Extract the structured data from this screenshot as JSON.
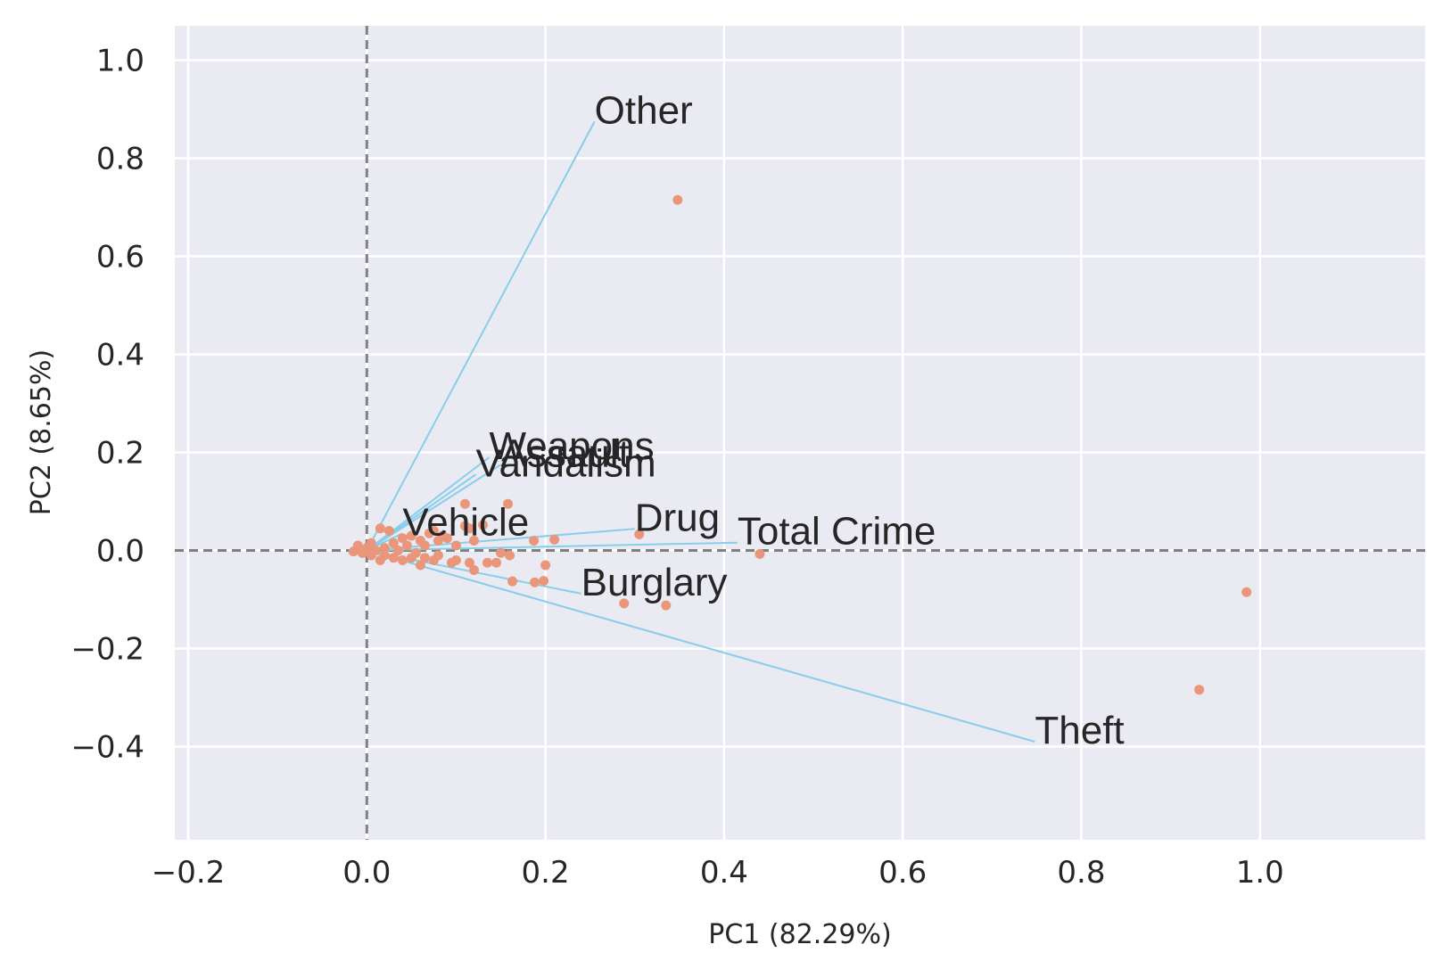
{
  "chart_data": {
    "type": "scatter",
    "subtype": "pca-biplot",
    "title": "",
    "xlabel": "PC1 (82.29%)",
    "ylabel": "PC2 (8.65%)",
    "xlim": [
      -0.215,
      1.185
    ],
    "ylim": [
      -0.59,
      1.07
    ],
    "xticks": [
      -0.2,
      0.0,
      0.2,
      0.4,
      0.6,
      0.8,
      1.0
    ],
    "xtick_labels": [
      "−0.2",
      "0.0",
      "0.2",
      "0.4",
      "0.6",
      "0.8",
      "1.0"
    ],
    "yticks": [
      1.0,
      0.8,
      0.6,
      0.4,
      0.2,
      0.0,
      -0.2,
      -0.4
    ],
    "ytick_labels": [
      "1.0",
      "0.8",
      "0.6",
      "0.4",
      "0.2",
      "0.0",
      "−0.2",
      "−0.4"
    ],
    "grid": true,
    "reference_lines": {
      "x": 0.0,
      "y": 0.0,
      "style": "dashed"
    },
    "colors": {
      "background": "#eaeaf2",
      "grid": "#ffffff",
      "points": "#e9967a",
      "vectors": "#87ceeb",
      "reference": "#808080",
      "text": "#262626"
    },
    "loadings": [
      {
        "name": "Other",
        "x": 0.255,
        "y": 0.875
      },
      {
        "name": "Weapons",
        "x": 0.137,
        "y": 0.19
      },
      {
        "name": "Assault",
        "x": 0.15,
        "y": 0.175
      },
      {
        "name": "Vandalism",
        "x": 0.122,
        "y": 0.155
      },
      {
        "name": "Vehicle",
        "x": 0.04,
        "y": 0.035
      },
      {
        "name": "Drug",
        "x": 0.3,
        "y": 0.044
      },
      {
        "name": "Total Crime",
        "x": 0.415,
        "y": 0.016
      },
      {
        "name": "Burglary",
        "x": 0.24,
        "y": -0.088
      },
      {
        "name": "Theft",
        "x": 0.748,
        "y": -0.39
      }
    ],
    "scores": [
      [
        0.348,
        0.715
      ],
      [
        0.985,
        -0.085
      ],
      [
        0.932,
        -0.284
      ],
      [
        0.44,
        -0.007
      ],
      [
        0.335,
        -0.112
      ],
      [
        0.288,
        -0.108
      ],
      [
        0.305,
        0.033
      ],
      [
        0.21,
        0.022
      ],
      [
        0.2,
        -0.03
      ],
      [
        0.198,
        -0.062
      ],
      [
        0.188,
        -0.065
      ],
      [
        0.187,
        0.02
      ],
      [
        0.163,
        -0.063
      ],
      [
        0.158,
        0.095
      ],
      [
        0.16,
        -0.01
      ],
      [
        0.15,
        -0.005
      ],
      [
        0.145,
        -0.025
      ],
      [
        0.135,
        -0.025
      ],
      [
        0.13,
        0.052
      ],
      [
        0.115,
        0.045
      ],
      [
        0.12,
        -0.04
      ],
      [
        0.12,
        0.02
      ],
      [
        0.11,
        0.095
      ],
      [
        0.11,
        0.05
      ],
      [
        0.115,
        -0.025
      ],
      [
        0.1,
        -0.02
      ],
      [
        0.1,
        0.01
      ],
      [
        0.095,
        -0.025
      ],
      [
        0.09,
        0.025
      ],
      [
        0.085,
        0.03
      ],
      [
        0.08,
        -0.01
      ],
      [
        0.075,
        0.04
      ],
      [
        0.075,
        -0.02
      ],
      [
        0.07,
        0.035
      ],
      [
        0.065,
        0.01
      ],
      [
        0.06,
        -0.03
      ],
      [
        0.06,
        0.02
      ],
      [
        0.055,
        -0.005
      ],
      [
        0.05,
        0.03
      ],
      [
        0.05,
        -0.015
      ],
      [
        0.045,
        0.01
      ],
      [
        0.04,
        -0.02
      ],
      [
        0.04,
        0.025
      ],
      [
        0.035,
        0.0
      ],
      [
        0.03,
        0.015
      ],
      [
        0.03,
        -0.015
      ],
      [
        0.025,
        0.04
      ],
      [
        0.02,
        -0.01
      ],
      [
        0.02,
        0.005
      ],
      [
        0.015,
        0.045
      ],
      [
        0.015,
        -0.02
      ],
      [
        0.01,
        0.0
      ],
      [
        0.005,
        0.015
      ],
      [
        0.005,
        -0.01
      ],
      [
        0.0,
        0.005
      ],
      [
        -0.005,
        -0.005
      ],
      [
        -0.01,
        0.01
      ],
      [
        -0.015,
        -0.002
      ],
      [
        0.065,
        -0.015
      ],
      [
        0.08,
        0.02
      ]
    ]
  }
}
